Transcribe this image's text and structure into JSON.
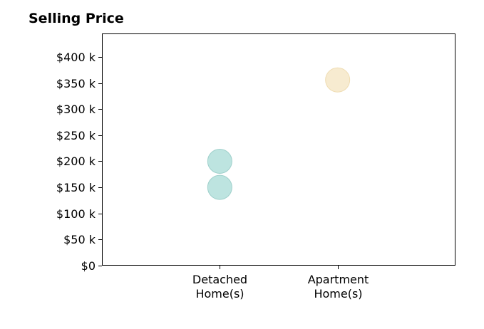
{
  "chart_data": {
    "type": "scatter",
    "title": "Selling Price",
    "xlabel": "",
    "ylabel": "",
    "categories": [
      [
        "Detached",
        "Home(s)"
      ],
      [
        "Apartment",
        "Home(s)"
      ]
    ],
    "y_ticks": [
      "$0",
      "$50 k",
      "$100 k",
      "$150 k",
      "$200 k",
      "$250 k",
      "$300 k",
      "$350 k",
      "$400 k"
    ],
    "y_tick_values": [
      0,
      50000,
      100000,
      150000,
      200000,
      250000,
      300000,
      350000,
      400000
    ],
    "ylim": [
      0,
      445000
    ],
    "x_range": [
      -1,
      2
    ],
    "grid": false,
    "points": [
      {
        "category_index": 0,
        "value": 150000,
        "color": "#b2dfdb"
      },
      {
        "category_index": 0,
        "value": 200000,
        "color": "#b2dfdb"
      },
      {
        "category_index": 1,
        "value": 356000,
        "color": "#f6e8c8"
      }
    ],
    "point_stroke_colors": {
      "teal": "#9fd0cb",
      "sand": "#efdcb2"
    }
  }
}
